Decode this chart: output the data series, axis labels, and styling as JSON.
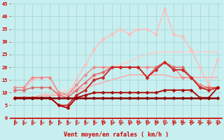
{
  "title": "",
  "xlabel": "Vent moyen/en rafales ( km/h )",
  "ylabel": "",
  "background_color": "#c8efef",
  "grid_color": "#a8d8d8",
  "xlim": [
    -0.5,
    23.5
  ],
  "ylim": [
    0,
    45
  ],
  "yticks": [
    0,
    5,
    10,
    15,
    20,
    25,
    30,
    35,
    40,
    45
  ],
  "xticks": [
    0,
    1,
    2,
    3,
    4,
    5,
    6,
    7,
    8,
    9,
    10,
    11,
    12,
    13,
    14,
    15,
    16,
    17,
    18,
    19,
    20,
    21,
    22,
    23
  ],
  "series": [
    {
      "y": [
        8,
        8,
        8,
        9,
        10,
        10,
        11,
        12,
        14,
        16,
        18,
        20,
        21,
        22,
        24,
        25,
        26,
        26,
        26,
        26,
        26,
        26,
        26,
        26
      ],
      "color": "#ffcccc",
      "lw": 1.2,
      "marker": null,
      "ms": 0,
      "zorder": 1
    },
    {
      "y": [
        8,
        8,
        8,
        9,
        9,
        9,
        10,
        11,
        12,
        13,
        14,
        15,
        16,
        17,
        17,
        17,
        17,
        17,
        16,
        16,
        16,
        16,
        16,
        16
      ],
      "color": "#ffaaaa",
      "lw": 1.2,
      "marker": null,
      "ms": 0,
      "zorder": 1
    },
    {
      "y": [
        11,
        11,
        15,
        16,
        16,
        9,
        9,
        15,
        21,
        27,
        31,
        33,
        35,
        33,
        35,
        35,
        33,
        43,
        33,
        32,
        27,
        20,
        13,
        23
      ],
      "color": "#ffbbbb",
      "lw": 1.0,
      "marker": "D",
      "ms": 2.5,
      "zorder": 2
    },
    {
      "y": [
        12,
        12,
        16,
        16,
        16,
        10,
        9,
        13,
        17,
        20,
        20,
        20,
        20,
        20,
        20,
        20,
        20,
        22,
        20,
        16,
        16,
        13,
        12,
        12
      ],
      "color": "#ee8888",
      "lw": 1.0,
      "marker": "D",
      "ms": 2.5,
      "zorder": 3
    },
    {
      "y": [
        11,
        11,
        12,
        12,
        12,
        9,
        8,
        11,
        14,
        17,
        18,
        20,
        20,
        20,
        20,
        16,
        20,
        22,
        20,
        20,
        16,
        12,
        12,
        12
      ],
      "color": "#dd6666",
      "lw": 1.0,
      "marker": "D",
      "ms": 2.5,
      "zorder": 3
    },
    {
      "y": [
        8,
        8,
        8,
        8,
        8,
        5,
        5,
        9,
        11,
        15,
        16,
        20,
        20,
        20,
        20,
        16,
        19,
        22,
        19,
        19,
        16,
        12,
        11,
        12
      ],
      "color": "#cc2222",
      "lw": 1.3,
      "marker": "D",
      "ms": 2.5,
      "zorder": 4
    },
    {
      "y": [
        8,
        8,
        8,
        8,
        8,
        5,
        4,
        8,
        9,
        10,
        10,
        10,
        10,
        10,
        10,
        10,
        10,
        11,
        11,
        11,
        11,
        8,
        8,
        12
      ],
      "color": "#aa0000",
      "lw": 1.3,
      "marker": "D",
      "ms": 2.5,
      "zorder": 5
    },
    {
      "y": [
        8,
        8,
        8,
        8,
        8,
        8,
        8,
        8,
        8,
        8,
        8,
        8,
        8,
        8,
        8,
        8,
        8,
        8,
        8,
        8,
        8,
        8,
        8,
        8
      ],
      "color": "#880000",
      "lw": 1.8,
      "marker": "D",
      "ms": 2.5,
      "zorder": 6
    }
  ]
}
